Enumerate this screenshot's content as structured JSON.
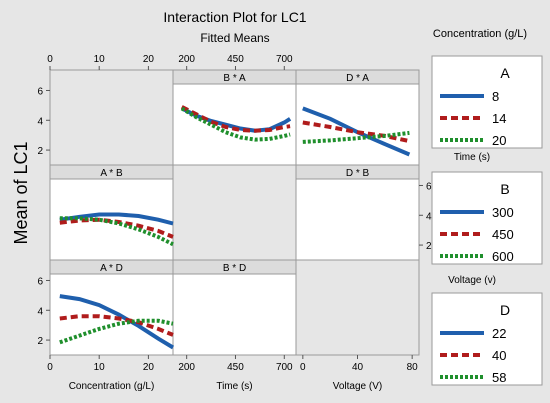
{
  "title": "Interaction Plot for LC1",
  "subtitle": "Fitted Means",
  "ylabel": "Mean of LC1",
  "colors": {
    "background": "#e6e6e6",
    "panel": "#ffffff",
    "strip": "#dcdcdc",
    "blue": "#1f5fad",
    "red": "#b01c1c",
    "green": "#1f8f2c"
  },
  "legends": [
    {
      "title_left": "Concentration (g/L)",
      "factor": "A",
      "items": [
        "8",
        "14",
        "20"
      ],
      "bottom_label": "Time (s)"
    },
    {
      "factor": "B",
      "items": [
        "300",
        "450",
        "600"
      ],
      "bottom_label": "Voltage (v)"
    },
    {
      "factor": "D",
      "items": [
        "22",
        "40",
        "58"
      ]
    }
  ],
  "chart_data": {
    "type": "line",
    "xaxes": [
      {
        "label": "Concentration (g/L)",
        "ticks": [
          "0",
          "10",
          "20"
        ],
        "range": [
          0,
          25
        ]
      },
      {
        "label": "Time (s)",
        "ticks": [
          "200",
          "450",
          "700"
        ],
        "range": [
          130,
          760
        ]
      },
      {
        "label": "Voltage (V)",
        "ticks": [
          "0",
          "40",
          "80"
        ],
        "range": [
          -5,
          85
        ]
      }
    ],
    "yticks": [
      "2",
      "4",
      "6"
    ],
    "ylim": [
      1.2,
      6.3
    ],
    "panels": [
      {
        "title": "B * A",
        "row": 0,
        "col": 1,
        "x": [
          175,
          250,
          325,
          400,
          475,
          550,
          625,
          700,
          730
        ],
        "series": [
          {
            "name": "8",
            "color": "blue",
            "values": [
              4.8,
              4.3,
              3.95,
              3.7,
              3.45,
              3.3,
              3.4,
              3.85,
              4.1
            ]
          },
          {
            "name": "14",
            "color": "red",
            "values": [
              4.9,
              4.4,
              3.9,
              3.55,
              3.35,
              3.3,
              3.35,
              3.55,
              3.6
            ]
          },
          {
            "name": "20",
            "color": "green",
            "values": [
              4.8,
              4.2,
              3.7,
              3.2,
              2.85,
              2.7,
              2.75,
              2.95,
              3.05
            ]
          }
        ]
      },
      {
        "title": "D * A",
        "row": 0,
        "col": 2,
        "x": [
          0,
          20,
          40,
          60,
          78
        ],
        "series": [
          {
            "name": "8",
            "color": "blue",
            "values": [
              4.8,
              4.1,
              3.2,
              2.4,
              1.7
            ]
          },
          {
            "name": "14",
            "color": "red",
            "values": [
              3.85,
              3.55,
              3.2,
              2.95,
              2.6
            ]
          },
          {
            "name": "20",
            "color": "green",
            "values": [
              2.55,
              2.65,
              2.8,
              2.95,
              3.15
            ]
          }
        ]
      },
      {
        "title": "A * B",
        "row": 1,
        "col": 0,
        "x": [
          2,
          6,
          10,
          14,
          18,
          22,
          25
        ],
        "series": [
          {
            "name": "300",
            "color": "blue",
            "values": [
              3.7,
              3.9,
              4.05,
              4.05,
              3.95,
              3.7,
              3.45
            ]
          },
          {
            "name": "450",
            "color": "red",
            "values": [
              3.5,
              3.65,
              3.7,
              3.55,
              3.3,
              2.95,
              2.55
            ]
          },
          {
            "name": "600",
            "color": "green",
            "values": [
              3.8,
              3.8,
              3.7,
              3.45,
              3.05,
              2.55,
              2.05
            ]
          }
        ]
      },
      {
        "title": "D * B",
        "row": 1,
        "col": 2,
        "x": [],
        "series": []
      },
      {
        "title": "A * D",
        "row": 2,
        "col": 0,
        "x": [
          2,
          6,
          10,
          14,
          18,
          22,
          25
        ],
        "series": [
          {
            "name": "22",
            "color": "blue",
            "values": [
              4.95,
              4.75,
              4.35,
              3.7,
              2.95,
              2.1,
              1.5
            ]
          },
          {
            "name": "40",
            "color": "red",
            "values": [
              3.45,
              3.6,
              3.6,
              3.45,
              3.2,
              2.75,
              2.35
            ]
          },
          {
            "name": "58",
            "color": "green",
            "values": [
              1.85,
              2.3,
              2.75,
              3.1,
              3.3,
              3.3,
              3.1
            ]
          }
        ]
      },
      {
        "title": "B * D",
        "row": 2,
        "col": 1,
        "x": [],
        "series": []
      }
    ]
  }
}
